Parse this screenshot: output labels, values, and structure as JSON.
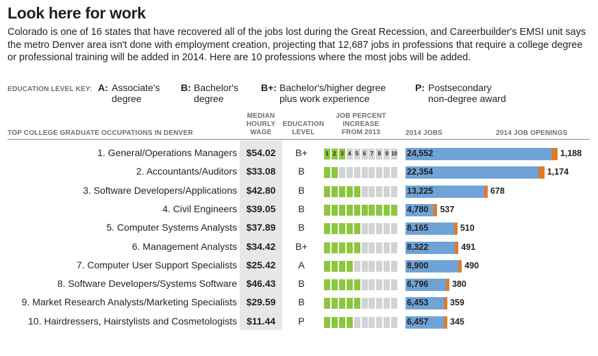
{
  "header": {
    "title": "Look here for work",
    "intro": "Colorado is one of 16 states that have recovered all of the jobs lost during the Great Recession, and Careerbuilder's EMSI unit says the metro Denver area isn't done with employment creation, projecting that 12,687 jobs in professions that require a college degree or professional training will be added in 2014. Here are 10 professions where the most jobs will be added."
  },
  "key": {
    "title": "EDUCATION LEVEL KEY:",
    "items": [
      {
        "code": "A:",
        "line1": "Associate's",
        "line2": "degree"
      },
      {
        "code": "B:",
        "line1": "Bachelor's",
        "line2": "degree"
      },
      {
        "code": "B+:",
        "line1": "Bachelor's/higher degree",
        "line2": "plus work experience"
      },
      {
        "code": "P:",
        "line1": "Postsecondary",
        "line2": "non-degree award"
      }
    ]
  },
  "columns": {
    "occupations": "TOP COLLEGE GRADUATE OCCUPATIONS IN DENVER",
    "wage": [
      "MEDIAN",
      "HOURLY",
      "WAGE"
    ],
    "education": [
      "EDUCATION",
      "LEVEL"
    ],
    "increase": [
      "JOB PERCENT",
      "INCREASE",
      "FROM 2013"
    ],
    "jobs": "2014 JOBS",
    "openings": "2014 JOB OPENINGS"
  },
  "colors": {
    "jobs_bar": "#6fa3d6",
    "openings_bar": "#e07b29",
    "increase_on": "#8cc63f",
    "increase_off": "#d1d3d4",
    "wage_bg": "#e6e7e8"
  },
  "chart_data": {
    "type": "table",
    "title": "Look here for work",
    "increase_scale": [
      "1",
      "2",
      "3",
      "4",
      "5",
      "6",
      "7",
      "8",
      "9",
      "10"
    ],
    "rows": [
      {
        "label": "1. General/Operations Managers",
        "wage": "$54.02",
        "edu": "B+",
        "increase": 3,
        "jobs": 24552,
        "jobs_label": "24,552",
        "openings": 1188,
        "openings_label": "1,188"
      },
      {
        "label": "2. Accountants/Auditors",
        "wage": "$33.08",
        "edu": "B",
        "increase": 2,
        "jobs": 22354,
        "jobs_label": "22,354",
        "openings": 1174,
        "openings_label": "1,174"
      },
      {
        "label": "3. Software Developers/Applications",
        "wage": "$42.80",
        "edu": "B",
        "increase": 5,
        "jobs": 13225,
        "jobs_label": "13,225",
        "openings": 678,
        "openings_label": "678"
      },
      {
        "label": "4. Civil Engineers",
        "wage": "$39.05",
        "edu": "B",
        "increase": 10,
        "jobs": 4780,
        "jobs_label": "4,780",
        "openings": 537,
        "openings_label": "537"
      },
      {
        "label": "5. Computer Systems Analysts",
        "wage": "$37.89",
        "edu": "B",
        "increase": 5,
        "jobs": 8165,
        "jobs_label": "8,165",
        "openings": 510,
        "openings_label": "510"
      },
      {
        "label": "6. Management Analysts",
        "wage": "$34.42",
        "edu": "B+",
        "increase": 5,
        "jobs": 8322,
        "jobs_label": "8,322",
        "openings": 491,
        "openings_label": "491"
      },
      {
        "label": "7. Computer User Support Specialists",
        "wage": "$25.42",
        "edu": "A",
        "increase": 4,
        "jobs": 8900,
        "jobs_label": "8,900",
        "openings": 490,
        "openings_label": "490"
      },
      {
        "label": "8. Software Developers/Systems Software",
        "wage": "$46.43",
        "edu": "B",
        "increase": 5,
        "jobs": 6796,
        "jobs_label": "6,796",
        "openings": 380,
        "openings_label": "380"
      },
      {
        "label": "9. Market Research Analysts/Marketing Specialists",
        "wage": "$29.59",
        "edu": "B",
        "increase": 5,
        "jobs": 6453,
        "jobs_label": "6,453",
        "openings": 359,
        "openings_label": "359"
      },
      {
        "label": "10. Hairdressers, Hairstylists and Cosmetologists",
        "wage": "$11.44",
        "edu": "P",
        "increase": 4,
        "jobs": 6457,
        "jobs_label": "6,457",
        "openings": 345,
        "openings_label": "345"
      }
    ]
  }
}
